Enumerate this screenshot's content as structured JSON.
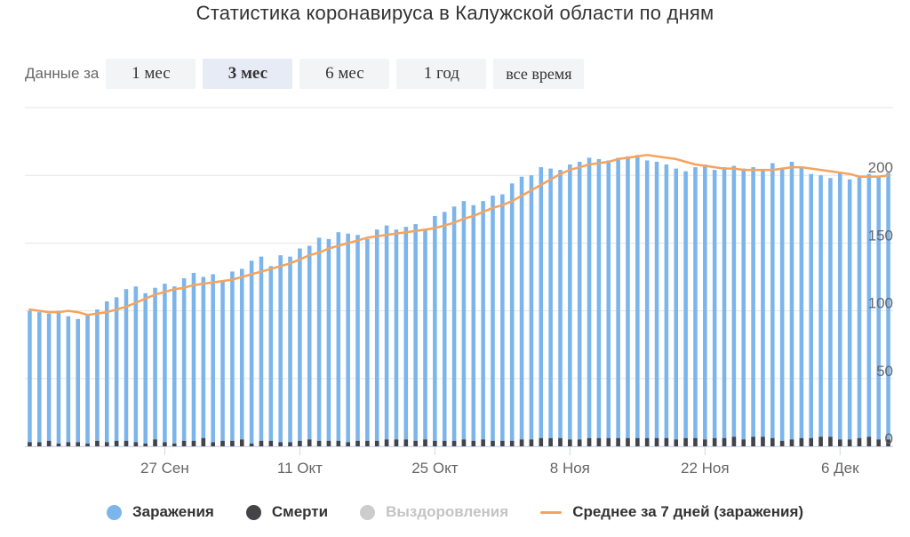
{
  "title": "Статистика коронавируса в Калужской области по дням",
  "period": {
    "label": "Данные за",
    "options": [
      "1 мес",
      "3 мес",
      "6 мес",
      "1 год",
      "все время"
    ],
    "selected": "3 мес"
  },
  "colors": {
    "infections": "#7cb5ec",
    "deaths": "#434348",
    "recoveries": "#cccccc",
    "average": "#f7a35c",
    "grid": "#e6e6e6"
  },
  "legend": [
    {
      "label": "Заражения",
      "symbol": "dot",
      "color": "#7cb5ec",
      "enabled": true
    },
    {
      "label": "Смерти",
      "symbol": "dot",
      "color": "#434348",
      "enabled": true
    },
    {
      "label": "Выздоровления",
      "symbol": "dot",
      "color": "#cccccc",
      "enabled": false
    },
    {
      "label": "Среднее за 7 дней (заражения)",
      "symbol": "line",
      "color": "#f7a35c",
      "enabled": true
    }
  ],
  "chart_data": {
    "type": "bar",
    "title": "Статистика коронавируса в Калужской области по дням",
    "x_start": "2021-09-13",
    "x_end": "2021-12-11",
    "x_ticks": [
      "27 Сен",
      "11 Окт",
      "25 Окт",
      "8 Ноя",
      "22 Ноя",
      "6 Дек"
    ],
    "x_tick_dates": [
      "2021-09-27",
      "2021-10-11",
      "2021-10-25",
      "2021-11-08",
      "2021-11-22",
      "2021-12-06"
    ],
    "y_ticks": [
      "0",
      "50",
      "100",
      "150",
      "200"
    ],
    "ylim": [
      0,
      250
    ],
    "grid": true,
    "legend_position": "bottom",
    "series": [
      {
        "name": "Заражения",
        "type": "bar",
        "values": [
          100,
          99,
          98,
          100,
          96,
          94,
          97,
          101,
          107,
          110,
          116,
          118,
          113,
          117,
          120,
          118,
          124,
          128,
          125,
          127,
          122,
          129,
          131,
          137,
          140,
          133,
          141,
          140,
          146,
          148,
          154,
          153,
          158,
          157,
          156,
          153,
          160,
          163,
          160,
          162,
          164,
          160,
          170,
          173,
          177,
          181,
          178,
          181,
          185,
          186,
          194,
          199,
          200,
          206,
          205,
          204,
          208,
          210,
          213,
          212,
          211,
          213,
          214,
          215,
          211,
          210,
          208,
          205,
          203,
          206,
          208,
          204,
          206,
          207,
          205,
          206,
          204,
          209,
          205,
          210,
          206,
          201,
          200,
          198,
          202,
          197,
          199,
          201,
          199,
          202
        ]
      },
      {
        "name": "Смерти",
        "type": "bar",
        "values": [
          3,
          3,
          4,
          2,
          3,
          3,
          2,
          4,
          3,
          4,
          4,
          3,
          2,
          5,
          3,
          2,
          4,
          4,
          6,
          3,
          4,
          4,
          5,
          2,
          4,
          4,
          3,
          3,
          4,
          5,
          4,
          4,
          4,
          3,
          4,
          4,
          4,
          5,
          5,
          5,
          4,
          5,
          4,
          4,
          4,
          5,
          4,
          5,
          4,
          4,
          4,
          5,
          5,
          6,
          6,
          6,
          5,
          5,
          6,
          6,
          6,
          6,
          6,
          6,
          6,
          6,
          6,
          5,
          6,
          6,
          5,
          6,
          6,
          7,
          5,
          7,
          7,
          6,
          4,
          5,
          6,
          6,
          7,
          7,
          5,
          5,
          6,
          7,
          5,
          5
        ]
      },
      {
        "name": "Среднее за 7 дней (заражения)",
        "type": "line",
        "values": [
          101,
          100,
          99,
          99,
          100,
          99,
          97,
          98,
          99,
          101,
          103,
          106,
          109,
          112,
          114,
          116,
          117,
          119,
          120,
          121,
          122,
          123,
          125,
          127,
          129,
          131,
          133,
          135,
          138,
          141,
          143,
          146,
          148,
          150,
          152,
          154,
          155,
          156,
          157,
          158,
          159,
          160,
          161,
          163,
          165,
          168,
          170,
          173,
          176,
          178,
          181,
          185,
          189,
          193,
          197,
          201,
          204,
          206,
          208,
          209,
          210,
          212,
          213,
          214,
          215,
          214,
          213,
          212,
          210,
          208,
          207,
          206,
          205,
          205,
          204,
          204,
          204,
          204,
          205,
          206,
          206,
          205,
          204,
          203,
          202,
          201,
          199,
          199,
          199,
          200
        ]
      }
    ]
  }
}
